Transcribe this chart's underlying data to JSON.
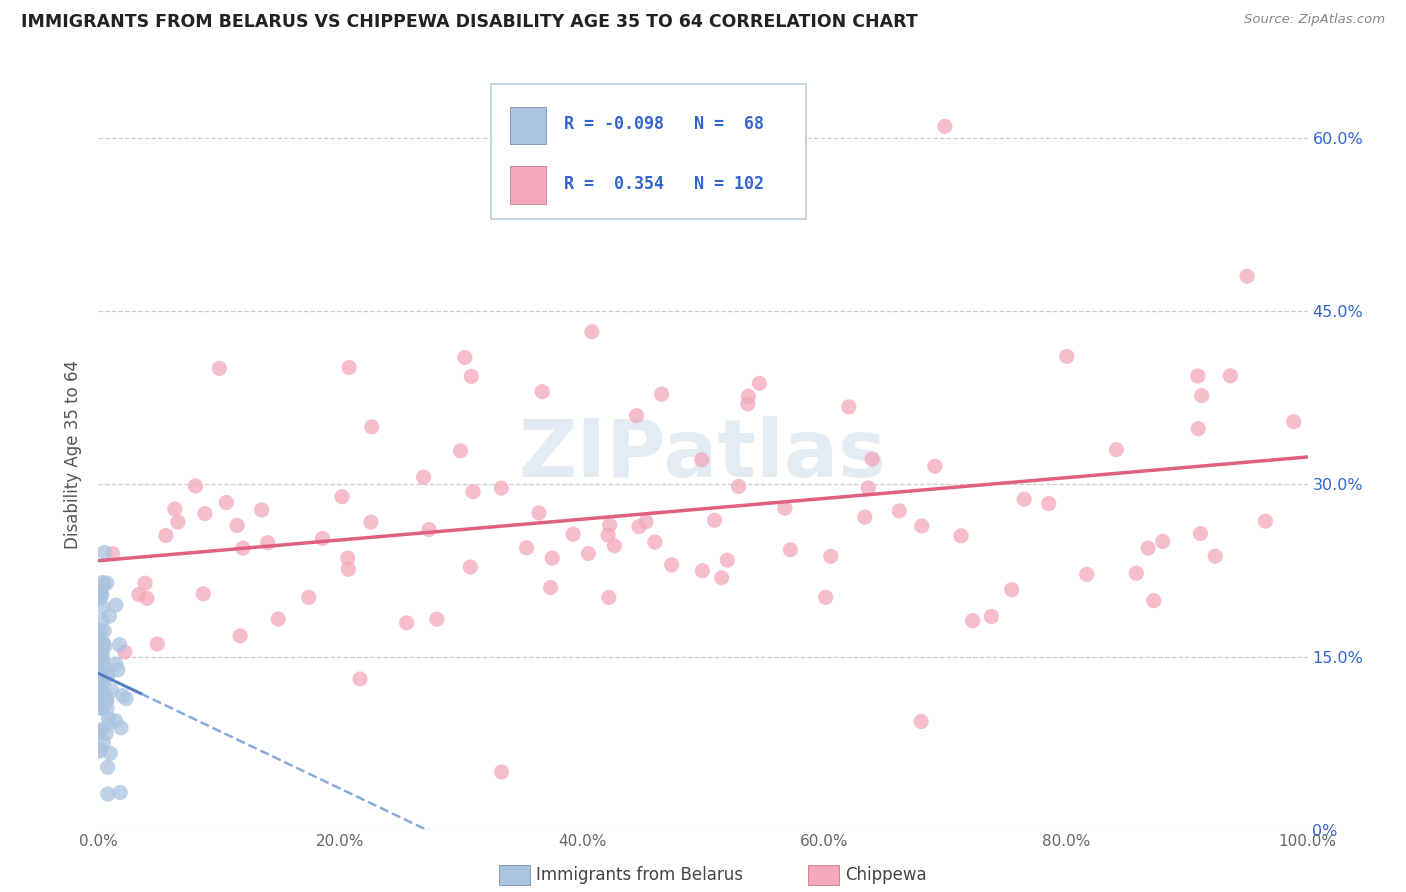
{
  "title": "IMMIGRANTS FROM BELARUS VS CHIPPEWA DISABILITY AGE 35 TO 64 CORRELATION CHART",
  "source_text": "Source: ZipAtlas.com",
  "ylabel": "Disability Age 35 to 64",
  "legend_labels": [
    "Immigrants from Belarus",
    "Chippewa"
  ],
  "r_belarus": -0.098,
  "n_belarus": 68,
  "r_chippewa": 0.354,
  "n_chippewa": 102,
  "color_belarus_fill": "#aac4e0",
  "color_chippewa_fill": "#f4a8bc",
  "color_belarus_line_solid": "#5580c0",
  "color_belarus_line_dashed": "#88aadd",
  "color_chippewa_line": "#e06080",
  "watermark_color": "#c8d8ec",
  "legend_box_color": "#aabbdd",
  "legend_text_color": "#3366cc",
  "ytick_color": "#3366cc",
  "xtick_color": "#666666",
  "ylabel_color": "#555555",
  "title_color": "#222222",
  "source_color": "#888888",
  "grid_color": "#cccccc",
  "xlim": [
    0,
    100
  ],
  "ylim": [
    0,
    65
  ],
  "ytick_vals": [
    0,
    15,
    30,
    45,
    60
  ],
  "ytick_labels": [
    "0%",
    "15.0%",
    "30.0%",
    "45.0%",
    "60.0%"
  ],
  "xtick_vals": [
    0,
    20,
    40,
    60,
    80,
    100
  ],
  "xtick_labels": [
    "0.0%",
    "20.0%",
    "40.0%",
    "60.0%",
    "80.0%",
    "100.0%"
  ],
  "legend_r1": "R = -0.098",
  "legend_n1": "N =  68",
  "legend_r2": "R =  0.354",
  "legend_n2": "N = 102"
}
